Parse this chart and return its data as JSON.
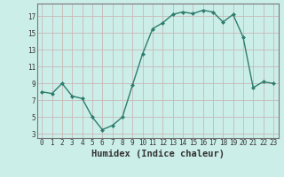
{
  "xlabel": "Humidex (Indice chaleur)",
  "x": [
    0,
    1,
    2,
    3,
    4,
    5,
    6,
    7,
    8,
    9,
    10,
    11,
    12,
    13,
    14,
    15,
    16,
    17,
    18,
    19,
    20,
    21,
    22,
    23
  ],
  "y": [
    8.0,
    7.8,
    9.0,
    7.5,
    7.2,
    5.0,
    3.5,
    4.0,
    5.0,
    8.8,
    12.5,
    15.5,
    16.2,
    17.2,
    17.5,
    17.3,
    17.7,
    17.5,
    16.3,
    17.2,
    14.5,
    8.5,
    9.2,
    9.0
  ],
  "line_color": "#2e7d6e",
  "marker": "D",
  "marker_size": 2.0,
  "line_width": 1.0,
  "bg_color": "#cceee8",
  "grid_color": "#c8b8b8",
  "yticks": [
    3,
    5,
    7,
    9,
    11,
    13,
    15,
    17
  ],
  "xticks": [
    0,
    1,
    2,
    3,
    4,
    5,
    6,
    7,
    8,
    9,
    10,
    11,
    12,
    13,
    14,
    15,
    16,
    17,
    18,
    19,
    20,
    21,
    22,
    23
  ],
  "ylim": [
    2.5,
    18.5
  ],
  "xlim": [
    -0.5,
    23.5
  ],
  "tick_fontsize": 5.5,
  "xlabel_fontsize": 7.5
}
